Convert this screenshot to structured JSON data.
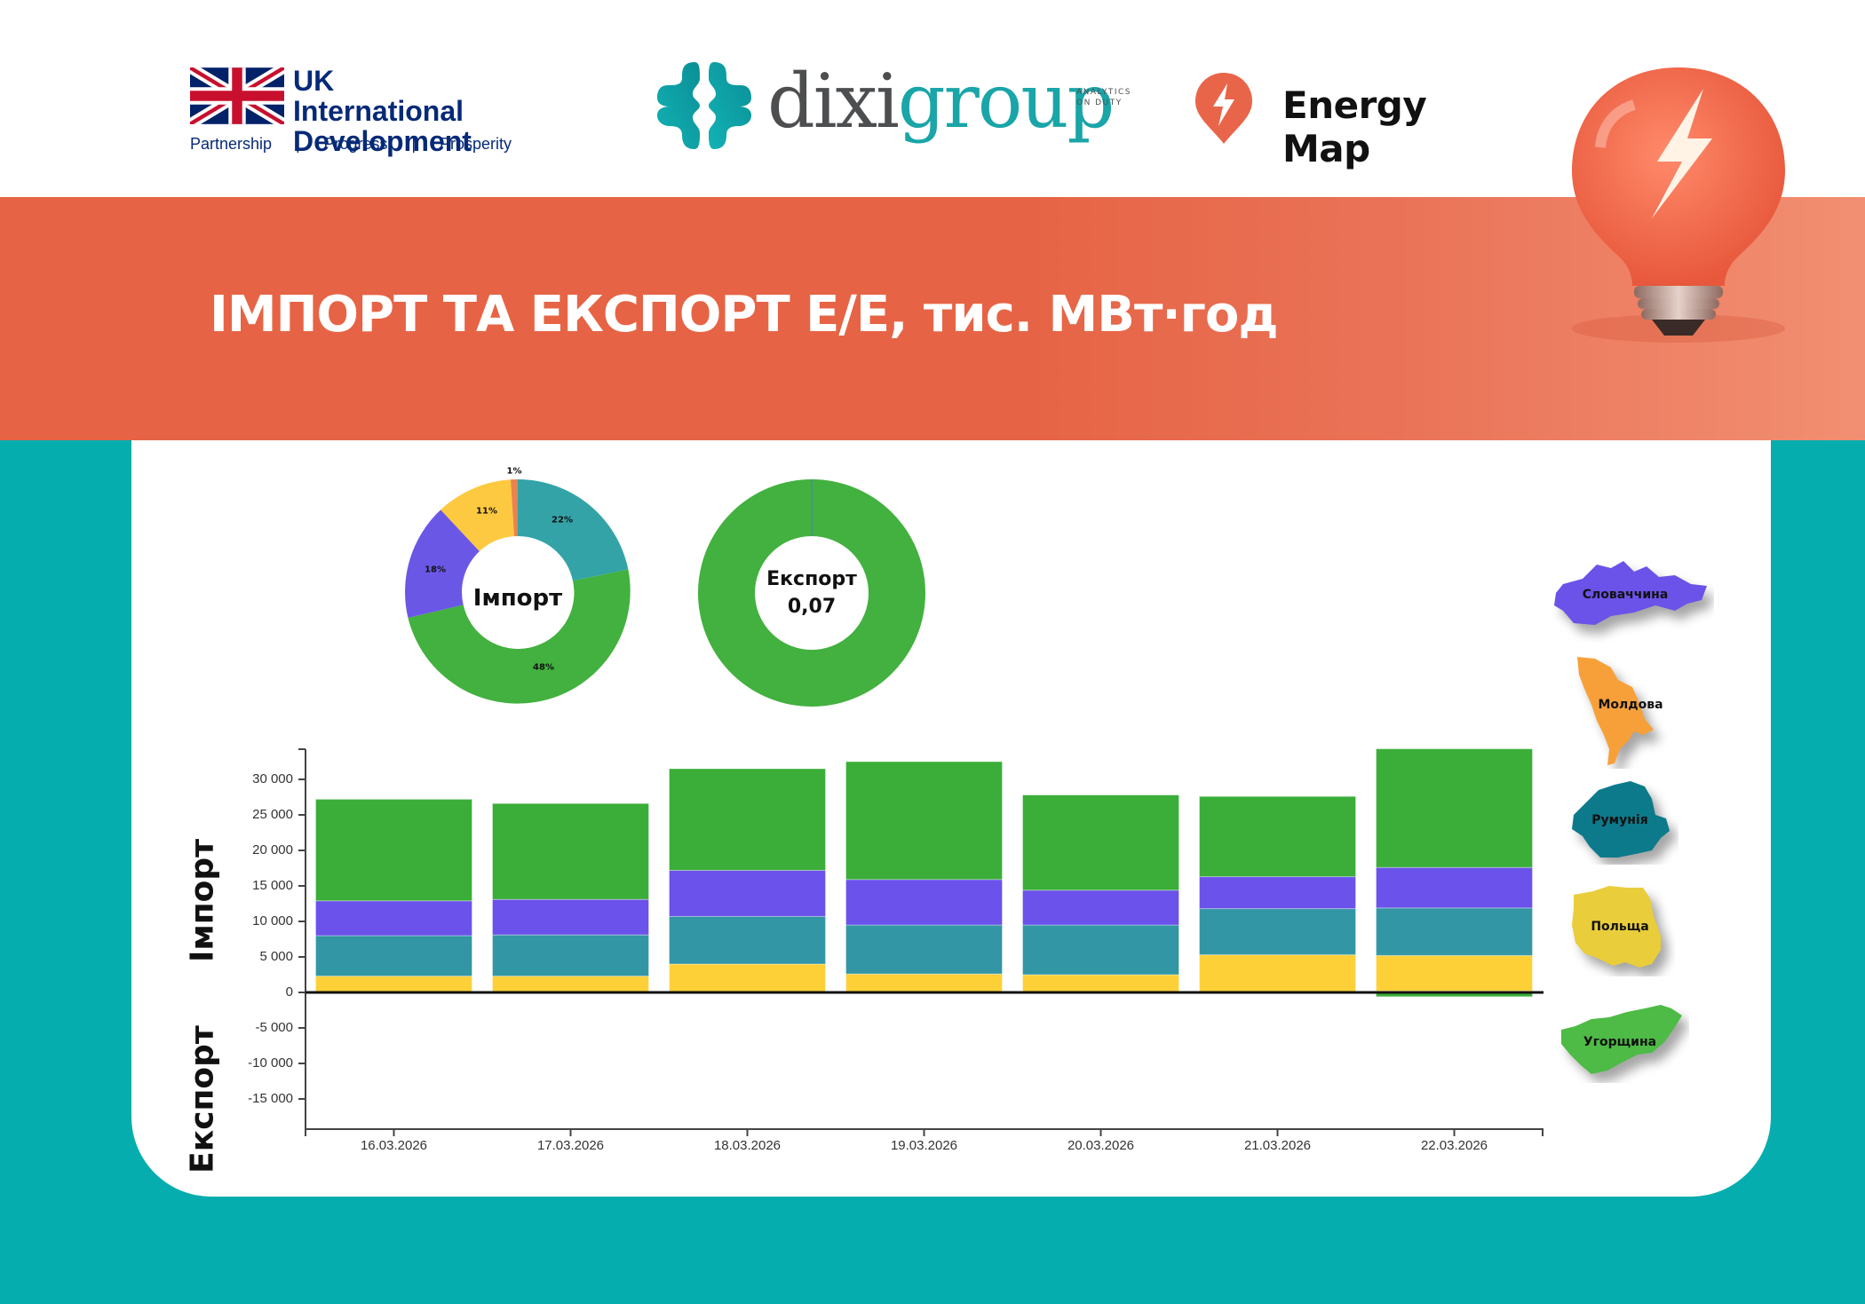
{
  "header": {
    "uk_logo": {
      "title_line1": "UK International",
      "title_line2": "Development",
      "taglines": [
        "Partnership",
        "|",
        "Progress",
        "|",
        "Prosperity"
      ]
    },
    "dixi_logo": {
      "word_part1": "dixi",
      "word_part2": "group",
      "sub_line1": "ANALYTICS",
      "sub_line2": "ON DUTY"
    },
    "energy_map_logo": {
      "text": "Energy Map"
    }
  },
  "banner": {
    "title": "ІМПОРТ ТА ЕКСПОРТ Е/Е, тис. МВт·год",
    "color": "#E66445"
  },
  "colors": {
    "background_teal": "#06ADAE",
    "slovakia": "#6B52E8",
    "moldova": "#F29A3A",
    "romania": "#3396A4",
    "poland": "#FDCF38",
    "hungary": "#3AAE3A"
  },
  "import_donut": {
    "center_label": "Імпорт",
    "slices": [
      {
        "country": "Румунія",
        "pct_label": "22%",
        "value": 22,
        "color": "#33A3A7"
      },
      {
        "country": "Угорщина",
        "pct_label": "48%",
        "value": 48,
        "color": "#42B13F"
      },
      {
        "country": "Словаччина",
        "pct_label": "18%",
        "value": 18,
        "color": "#6B57E6"
      },
      {
        "country": "Польща",
        "pct_label": "11%",
        "value": 11,
        "color": "#FDC940"
      },
      {
        "country": "Молдова",
        "pct_label": "1%",
        "value": 1,
        "color": "#E9834F"
      }
    ]
  },
  "export_donut": {
    "center_label": "Експорт",
    "center_value": "0,07",
    "slices": [
      {
        "country": "Угорщина",
        "value": 99.7,
        "color": "#42B13F"
      },
      {
        "country": "Румунія",
        "value": 0.3,
        "color": "#4A8BA8"
      }
    ]
  },
  "legend": {
    "countries": [
      {
        "name": "Словаччина",
        "color": "#6B52E8"
      },
      {
        "name": "Молдова",
        "color": "#F7A03A"
      },
      {
        "name": "Румунія",
        "color": "#0C7A8A"
      },
      {
        "name": "Польща",
        "color": "#E9CD3A"
      },
      {
        "name": "Угорщина",
        "color": "#4DBB45"
      }
    ]
  },
  "chart_data": [
    {
      "type": "bar",
      "stacked": true,
      "title": "ІМПОРТ ТА ЕКСПОРТ Е/Е, тис. МВт·год",
      "xlabel": "",
      "ylabel_positive": "Імпорт",
      "ylabel_negative": "Експорт",
      "ylim": [
        -19000,
        34000
      ],
      "yticks": [
        30000,
        25000,
        20000,
        15000,
        10000,
        5000,
        0,
        -5000,
        -10000,
        -15000
      ],
      "ytick_labels": [
        "30 000",
        "25 000",
        "20 000",
        "15 000",
        "10 000",
        "5 000",
        "0",
        "-5 000",
        "-10 000",
        "-15 000"
      ],
      "categories": [
        "16.03.2026",
        "17.03.2026",
        "18.03.2026",
        "19.03.2026",
        "20.03.2026",
        "21.03.2026",
        "22.03.2026"
      ],
      "grid": false,
      "series": [
        {
          "name": "Молдова (імпорт)",
          "color": "#E9834F",
          "values": [
            0,
            0,
            0,
            0,
            0,
            0,
            200
          ]
        },
        {
          "name": "Польща (імпорт)",
          "color": "#FDD038",
          "values": [
            2300,
            2300,
            4000,
            2600,
            2500,
            5300,
            5000
          ]
        },
        {
          "name": "Румунія (імпорт)",
          "color": "#3396A4",
          "values": [
            5700,
            5800,
            6700,
            6900,
            7000,
            6500,
            6700
          ]
        },
        {
          "name": "Словаччина (імпорт)",
          "color": "#6B52EA",
          "values": [
            4900,
            5000,
            6500,
            6400,
            4900,
            4500,
            5700
          ]
        },
        {
          "name": "Угорщина (імпорт)",
          "color": "#3AAE38",
          "values": [
            14300,
            13500,
            14300,
            16600,
            13400,
            11300,
            16700
          ]
        },
        {
          "name": "Угорщина (експорт)",
          "color": "#3AAE38",
          "values": [
            0,
            0,
            0,
            0,
            0,
            0,
            -600
          ]
        }
      ]
    },
    {
      "type": "pie",
      "title": "Імпорт",
      "categories": [
        "Румунія",
        "Угорщина",
        "Словаччина",
        "Польща",
        "Молдова"
      ],
      "values": [
        22,
        48,
        18,
        11,
        1
      ],
      "labels": [
        "22%",
        "48%",
        "18%",
        "11%",
        "1%"
      ]
    },
    {
      "type": "pie",
      "title": "Експорт",
      "annotation": "0,07",
      "categories": [
        "Угорщина",
        "Румунія"
      ],
      "values": [
        99.7,
        0.3
      ]
    }
  ]
}
